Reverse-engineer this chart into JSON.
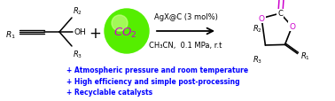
{
  "background_color": "#ffffff",
  "bullet_color": "#0000ff",
  "bullet_texts": [
    "+ Atmospheric pressure and room temperature",
    "+ High efficiency and simple post-processing",
    "+ Recyclable catalysts"
  ],
  "bullet_fontsize": 5.5,
  "catalyst_text": "AgX@C (3 mol%)",
  "conditions_text": "CH₃CN,  0.1 MPa, r.t",
  "text_fontsize": 6.0,
  "co2_ball_color": "#55ee00",
  "co2_ball_highlight": "#aaff66",
  "co2_text_color": "#cc00cc",
  "bond_color": "#000000",
  "oxygen_color": "#cc00cc",
  "arrow_color": "#000000",
  "fig_width": 3.78,
  "fig_height": 1.15,
  "dpi": 100
}
